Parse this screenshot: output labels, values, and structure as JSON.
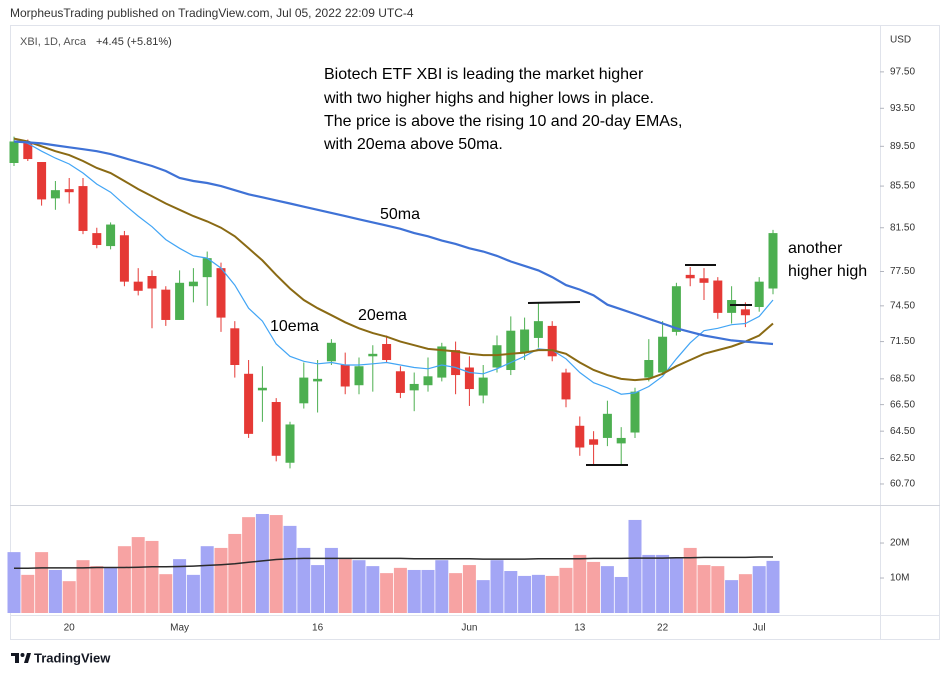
{
  "chart_data": {
    "type": "candlestick",
    "title": "MorpheusTrading published on TradingView.com, Jul 05, 2022 22:09 UTC-4",
    "symbol": "XBI, 1D, Arca",
    "change": "+4.45 (+5.81%)",
    "y_unit": "USD",
    "annotations": [
      "Biotech ETF XBI is leading the market higher",
      "with two higher highs and higher lows in place.",
      "The price is above the rising 10 and 20-day EMAs,",
      "with 20ema above 50ma.",
      "another",
      "higher high"
    ],
    "categories": [
      null,
      null,
      null,
      null,
      "20",
      null,
      null,
      null,
      null,
      null,
      null,
      null,
      "May",
      null,
      null,
      null,
      null,
      null,
      null,
      null,
      null,
      null,
      "16",
      null,
      null,
      null,
      null,
      null,
      null,
      null,
      null,
      null,
      null,
      "Jun",
      null,
      null,
      null,
      null,
      null,
      null,
      null,
      "13",
      null,
      null,
      null,
      null,
      null,
      "22",
      null,
      null,
      null,
      null,
      null,
      null,
      "Jul",
      null
    ],
    "log_scale": true,
    "grid": false,
    "ylim": [
      59.25,
      102.9
    ],
    "yticks": [
      {
        "value": 60.7,
        "label": "60.70"
      },
      {
        "value": 62.5,
        "label": "62.50"
      },
      {
        "value": 64.5,
        "label": "64.50"
      },
      {
        "value": 66.5,
        "label": "66.50"
      },
      {
        "value": 68.5,
        "label": "68.50"
      },
      {
        "value": 71.5,
        "label": "71.50"
      },
      {
        "value": 74.5,
        "label": "74.50"
      },
      {
        "value": 77.5,
        "label": "77.50"
      },
      {
        "value": 81.5,
        "label": "81.50"
      },
      {
        "value": 85.5,
        "label": "85.50"
      },
      {
        "value": 89.5,
        "label": "89.50"
      },
      {
        "value": 93.5,
        "label": "93.50"
      },
      {
        "value": 97.5,
        "label": "97.50"
      }
    ],
    "up_color": "#4caf50",
    "down_color": "#e53935",
    "series": [
      {
        "open": [
          87.8,
          89.9,
          87.9,
          84.3,
          85.2,
          85.5,
          81.0,
          79.8,
          80.8,
          76.6,
          77.1,
          75.9,
          73.3,
          76.2,
          77.0,
          77.8,
          72.6,
          68.9,
          67.6,
          66.7,
          62.2,
          66.6,
          68.3,
          69.9,
          69.6,
          68.0,
          70.3,
          71.3,
          69.1,
          67.6,
          68.0,
          68.6,
          70.8,
          69.4,
          67.2,
          69.4,
          69.2,
          70.6,
          71.8,
          72.8,
          69.0,
          64.9,
          63.9,
          64.0,
          63.6,
          64.4,
          68.6,
          69.0,
          72.3,
          77.2,
          76.9,
          76.7,
          73.9,
          74.2,
          74.4,
          76.0
        ],
        "high": [
          90.5,
          90.2,
          87.9,
          86.0,
          86.3,
          86.3,
          81.5,
          82.0,
          81.2,
          77.8,
          77.6,
          76.2,
          77.6,
          77.8,
          79.3,
          78.3,
          73.2,
          70.0,
          69.5,
          67.0,
          65.2,
          69.8,
          70.0,
          71.7,
          70.6,
          70.2,
          71.2,
          72.0,
          69.5,
          69.0,
          70.2,
          71.4,
          71.5,
          70.3,
          69.6,
          72.0,
          73.6,
          73.5,
          74.7,
          73.2,
          69.3,
          65.6,
          64.5,
          66.8,
          64.8,
          67.8,
          71.7,
          73.2,
          76.5,
          77.9,
          77.8,
          77.0,
          76.2,
          74.8,
          77.0,
          81.3
        ],
        "low": [
          87.5,
          88.0,
          83.6,
          83.2,
          83.8,
          80.9,
          79.6,
          79.5,
          76.2,
          75.4,
          72.6,
          72.8,
          73.3,
          74.8,
          74.5,
          72.3,
          68.6,
          64.0,
          65.2,
          62.3,
          61.8,
          66.2,
          65.9,
          69.6,
          67.3,
          67.3,
          67.5,
          69.8,
          67.0,
          66.0,
          67.5,
          68.3,
          67.3,
          66.4,
          66.6,
          69.0,
          68.8,
          70.0,
          71.0,
          69.9,
          66.3,
          62.7,
          62.0,
          63.4,
          62.1,
          64.0,
          68.3,
          68.8,
          72.0,
          76.2,
          75.0,
          73.4,
          73.0,
          72.7,
          74.0,
          75.5
        ],
        "close": [
          90.0,
          88.2,
          84.2,
          85.1,
          84.9,
          81.2,
          79.9,
          81.8,
          76.6,
          75.8,
          76.0,
          73.3,
          76.5,
          76.6,
          78.7,
          73.5,
          69.6,
          64.3,
          67.8,
          62.7,
          65.0,
          68.6,
          68.5,
          71.4,
          67.9,
          69.5,
          70.5,
          70.0,
          67.4,
          68.1,
          68.7,
          71.1,
          68.8,
          67.7,
          68.6,
          71.2,
          72.4,
          72.5,
          73.2,
          70.3,
          66.9,
          63.3,
          63.5,
          65.8,
          64.0,
          67.5,
          70.0,
          71.9,
          76.2,
          76.9,
          76.5,
          73.9,
          75.0,
          73.7,
          76.6,
          81.0
        ]
      },
      {
        "name": "10ema",
        "color": "#42a5f5",
        "width": 1.2,
        "values": [
          90.3,
          89.8,
          89.0,
          88.3,
          87.7,
          86.8,
          85.7,
          84.9,
          83.7,
          82.6,
          81.6,
          80.4,
          79.6,
          78.9,
          78.7,
          77.8,
          76.3,
          74.3,
          73.2,
          71.3,
          70.3,
          69.9,
          69.7,
          69.8,
          69.6,
          69.6,
          69.7,
          69.8,
          69.6,
          69.4,
          69.3,
          69.6,
          69.4,
          69.0,
          68.9,
          69.3,
          69.8,
          70.3,
          70.9,
          70.8,
          70.1,
          69.0,
          68.2,
          67.8,
          67.3,
          67.4,
          67.9,
          68.7,
          70.1,
          71.4,
          72.4,
          72.6,
          72.9,
          73.0,
          73.6,
          75.0
        ]
      },
      {
        "name": "20ema",
        "color": "#8a6a14",
        "width": 2,
        "values": [
          90.3,
          90.0,
          89.5,
          89.0,
          88.6,
          88.0,
          87.3,
          86.8,
          86.0,
          85.2,
          84.5,
          83.8,
          83.2,
          82.6,
          82.1,
          81.5,
          80.7,
          79.6,
          78.5,
          77.2,
          76.0,
          75.0,
          74.3,
          73.7,
          73.1,
          72.6,
          72.2,
          71.9,
          71.5,
          71.2,
          70.9,
          70.8,
          70.7,
          70.5,
          70.4,
          70.4,
          70.5,
          70.6,
          70.8,
          70.8,
          70.5,
          69.8,
          69.2,
          68.8,
          68.5,
          68.4,
          68.5,
          68.9,
          69.5,
          70.0,
          70.5,
          70.8,
          71.1,
          71.5,
          72.0,
          73.0
        ]
      },
      {
        "name": "50ma",
        "color": "#3f72d6",
        "width": 2.2,
        "values": [
          90.0,
          89.9,
          89.8,
          89.6,
          89.4,
          89.2,
          89.0,
          88.7,
          88.3,
          87.9,
          87.5,
          87.0,
          86.3,
          86.0,
          85.8,
          85.5,
          85.1,
          84.7,
          84.4,
          84.1,
          83.8,
          83.5,
          83.2,
          82.9,
          82.6,
          82.3,
          82.0,
          81.7,
          81.4,
          81.0,
          80.7,
          80.3,
          80.0,
          79.6,
          79.3,
          78.9,
          78.4,
          78.0,
          77.6,
          77.0,
          76.3,
          75.9,
          75.4,
          74.6,
          74.2,
          73.8,
          73.4,
          73.0,
          72.6,
          72.3,
          72.0,
          71.8,
          71.6,
          71.5,
          71.4,
          71.3
        ]
      }
    ],
    "volume": {
      "ylim": [
        0,
        30300000
      ],
      "yticks": [
        {
          "value": 10000000,
          "label": "10M"
        },
        {
          "value": 20000000,
          "label": "20M"
        }
      ],
      "up_color": "#a3a6f5",
      "down_color": "#f7a3a3",
      "ma_color": "#2b2b2b",
      "values": [
        17400000,
        10900000,
        17400000,
        12300000,
        9100000,
        15100000,
        13400000,
        12900000,
        19100000,
        21700000,
        20600000,
        11100000,
        15400000,
        10900000,
        19100000,
        18600000,
        22600000,
        27400000,
        28300000,
        28000000,
        24900000,
        18600000,
        13700000,
        18600000,
        15400000,
        15100000,
        13400000,
        11400000,
        12900000,
        12300000,
        12300000,
        15100000,
        11400000,
        13700000,
        9400000,
        15100000,
        12000000,
        10600000,
        10900000,
        10600000,
        12900000,
        16600000,
        14600000,
        13400000,
        10300000,
        26600000,
        16600000,
        16600000,
        16000000,
        18600000,
        13700000,
        13400000,
        9400000,
        11100000,
        13400000,
        14900000
      ],
      "ma": [
        12800000,
        12800000,
        12900000,
        12900000,
        12900000,
        12900000,
        13000000,
        13000000,
        13000000,
        13100000,
        13200000,
        13200000,
        13300000,
        13400000,
        13600000,
        13800000,
        14100000,
        14500000,
        14900000,
        15300000,
        15500000,
        15600000,
        15600000,
        15600000,
        15600000,
        15600000,
        15600000,
        15600000,
        15600000,
        15500000,
        15500000,
        15500000,
        15500000,
        15500000,
        15400000,
        15400000,
        15400000,
        15400000,
        15500000,
        15500000,
        15500000,
        15500000,
        15600000,
        15600000,
        15600000,
        15700000,
        15700000,
        15700000,
        15800000,
        15800000,
        15900000,
        15900000,
        15900000,
        15900000,
        16000000,
        16000000
      ]
    }
  },
  "footer": {
    "brand": "TradingView"
  }
}
